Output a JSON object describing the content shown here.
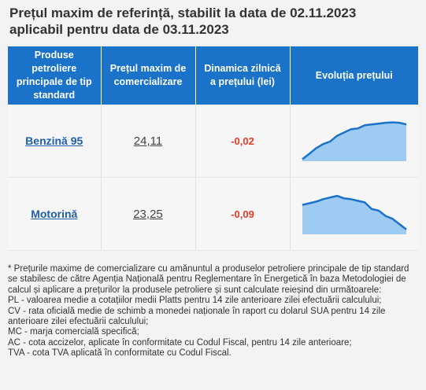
{
  "title": {
    "line1": "Prețul maxim de referință, stabilit la data de 02.11.2023",
    "line2": "aplicabil pentru data de 03.11.2023"
  },
  "table": {
    "headers": [
      "Produse petroliere principale de tip standard",
      "Prețul maxim de comercializare",
      "Dinamica zilnică a prețului (lei)",
      "Evoluția prețului"
    ],
    "rows": [
      {
        "product": "Benzină 95",
        "price": "24,11",
        "delta": "-0,02",
        "trend": [
          0.05,
          0.18,
          0.32,
          0.42,
          0.48,
          0.62,
          0.7,
          0.78,
          0.8,
          0.88,
          0.9,
          0.92,
          0.94,
          0.95,
          0.94,
          0.9
        ]
      },
      {
        "product": "Motorină",
        "price": "23,25",
        "delta": "-0,09",
        "trend": [
          0.72,
          0.76,
          0.8,
          0.86,
          0.9,
          0.94,
          0.88,
          0.86,
          0.82,
          0.78,
          0.62,
          0.58,
          0.45,
          0.38,
          0.25,
          0.12
        ]
      }
    ],
    "spark_color": "#1a73c9",
    "spark_fill": "#9ecbf1"
  },
  "notes": [
    "* Prețurile maxime de comercializare cu amănuntul a produselor petroliere principale de tip standard se stabilesc de către Agenția Națională pentru Reglementare în Energetică în baza Metodologiei de calcul și aplicare a prețurilor la produsele petroliere și sunt calculate reieșind din următoarele:",
    "PL - valoarea medie a cotațiilor medii Platts pentru 14 zile anterioare zilei efectuării calculului;",
    "CV - rata oficială medie de schimb a monedei naționale în raport cu dolarul SUA pentru 14 zile anterioare zilei efectuării calculului;",
    "MC - marja comercială specifică;",
    "AC - cota accizelor, aplicate în conformitate cu Codul Fiscal, pentru 14 zile anterioare;",
    "TVA - cota TVA aplicată în conformitate cu Codul Fiscal."
  ]
}
